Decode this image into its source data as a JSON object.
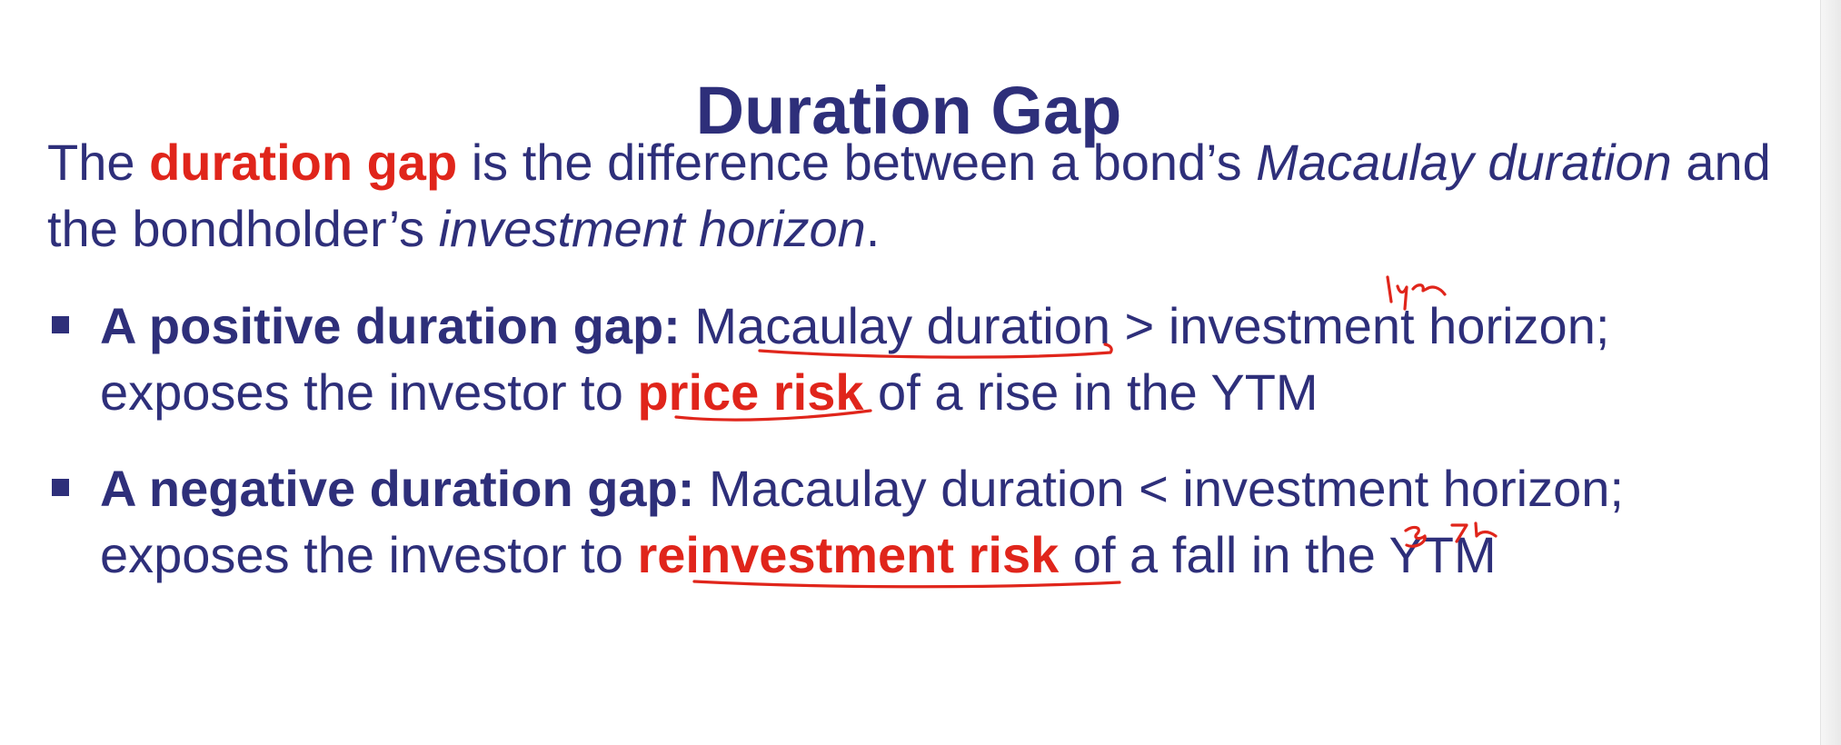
{
  "slide": {
    "title": "Duration Gap",
    "intro": {
      "p1": "The ",
      "term": "duration gap",
      "p2": " is the difference between a bond’s ",
      "mac": "Macaulay duration",
      "p3": " and the bondholder’s ",
      "horizon": "investment horizon",
      "p4": "."
    },
    "bullets": [
      {
        "lead": "A positive duration gap:",
        "text1": " Macaulay duration > investment horizon; exposes the investor to ",
        "risk": "price risk",
        "text2": " of a rise in the YTM"
      },
      {
        "lead": "A negative duration gap:",
        "text1": " Macaulay duration < investment horizon; exposes the investor to ",
        "risk": "reinvestment risk",
        "text2": " of a fall in the YTM"
      }
    ]
  },
  "colors": {
    "text": "#2e2f7a",
    "highlight": "#e0251b",
    "annotation_ink": "#e0251b"
  }
}
